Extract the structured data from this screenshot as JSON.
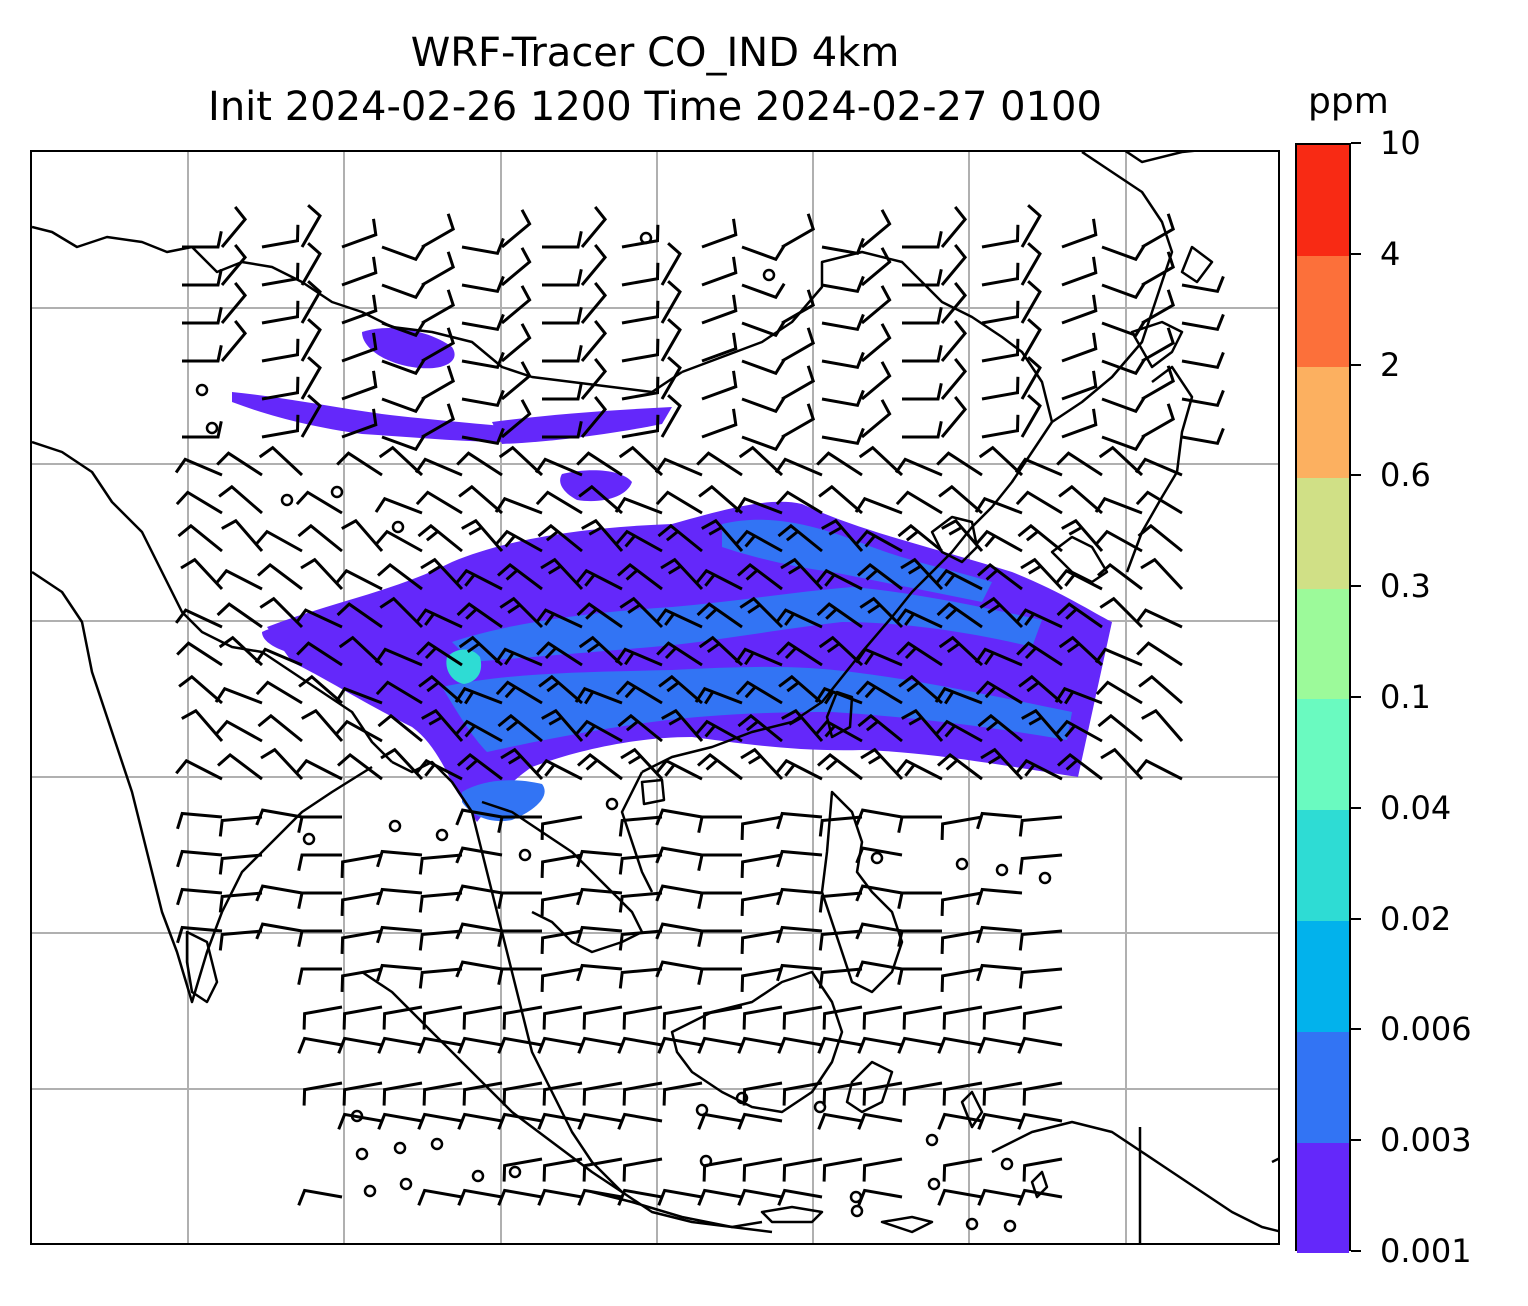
{
  "title_line1": "WRF-Tracer CO_IND 4km",
  "title_line2": "Init 2024-02-26 1200 Time 2024-02-27 0100",
  "colorbar": {
    "units": "ppm",
    "levels": [
      "0.001",
      "0.003",
      "0.006",
      "0.02",
      "0.04",
      "0.1",
      "0.3",
      "0.6",
      "2",
      "4",
      "10"
    ],
    "colors": [
      "#6428fa",
      "#3274f4",
      "#02b2ec",
      "#2edcd4",
      "#6afac0",
      "#9cfa9a",
      "#d0e086",
      "#fcb060",
      "#fc703a",
      "#f82a14"
    ]
  },
  "map": {
    "gridline_color": "#b0b0b0",
    "coastline_color": "#000000",
    "plume_colors": {
      "low": "#6428fa",
      "mid": "#3274f4",
      "high": "#2edcd4"
    }
  }
}
